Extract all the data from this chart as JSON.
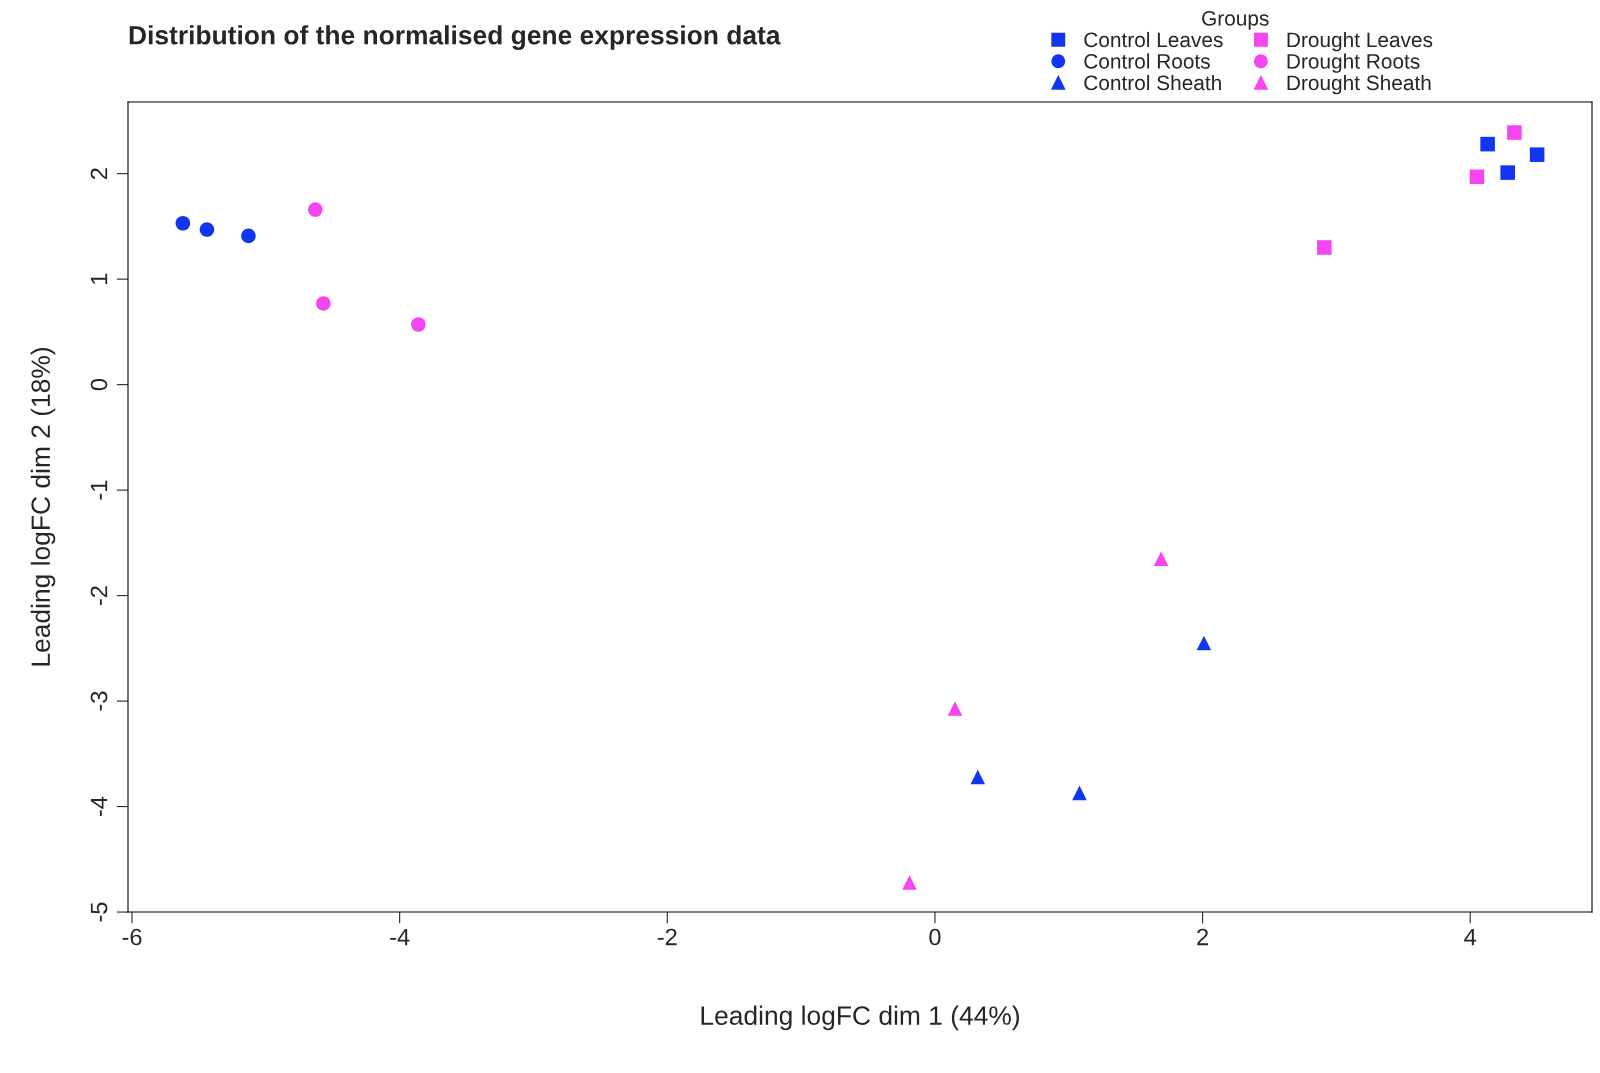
{
  "chart_data": {
    "type": "scatter",
    "title": "Distribution of the normalised gene expression data",
    "xlabel": "Leading logFC dim 1 (44%)",
    "ylabel": "Leading logFC dim 2 (18%)",
    "legend_title": "Groups",
    "legend": "top right",
    "xlim": [
      -6.03,
      4.91
    ],
    "ylim": [
      -5.0,
      2.68
    ],
    "xticks": [
      -6,
      -4,
      -2,
      0,
      2,
      4
    ],
    "yticks": [
      -5,
      -4,
      -3,
      -2,
      -1,
      0,
      1,
      2
    ],
    "grid": false,
    "series": [
      {
        "name": "Control Leaves",
        "color": "#1236f0",
        "marker": "square",
        "x": [
          4.13,
          4.28,
          4.5
        ],
        "values": [
          2.28,
          2.01,
          2.18
        ]
      },
      {
        "name": "Control Roots",
        "color": "#1236f0",
        "marker": "circle",
        "x": [
          -5.62,
          -5.44,
          -5.13
        ],
        "values": [
          1.53,
          1.47,
          1.41
        ]
      },
      {
        "name": "Control Sheath",
        "color": "#1236f0",
        "marker": "triangle",
        "x": [
          0.32,
          1.08,
          2.01
        ],
        "values": [
          -3.72,
          -3.87,
          -2.45
        ]
      },
      {
        "name": "Drought Leaves",
        "color": "#f545f0",
        "marker": "square",
        "x": [
          4.33,
          4.05,
          2.91
        ],
        "values": [
          2.39,
          1.97,
          1.3
        ]
      },
      {
        "name": "Drought Roots",
        "color": "#f545f0",
        "marker": "circle",
        "x": [
          -4.63,
          -4.57,
          -3.86
        ],
        "values": [
          1.66,
          0.77,
          0.57
        ]
      },
      {
        "name": "Drought Sheath",
        "color": "#f545f0",
        "marker": "triangle",
        "x": [
          0.15,
          1.69,
          -0.19
        ],
        "values": [
          -3.07,
          -1.65,
          -4.72
        ]
      }
    ]
  }
}
